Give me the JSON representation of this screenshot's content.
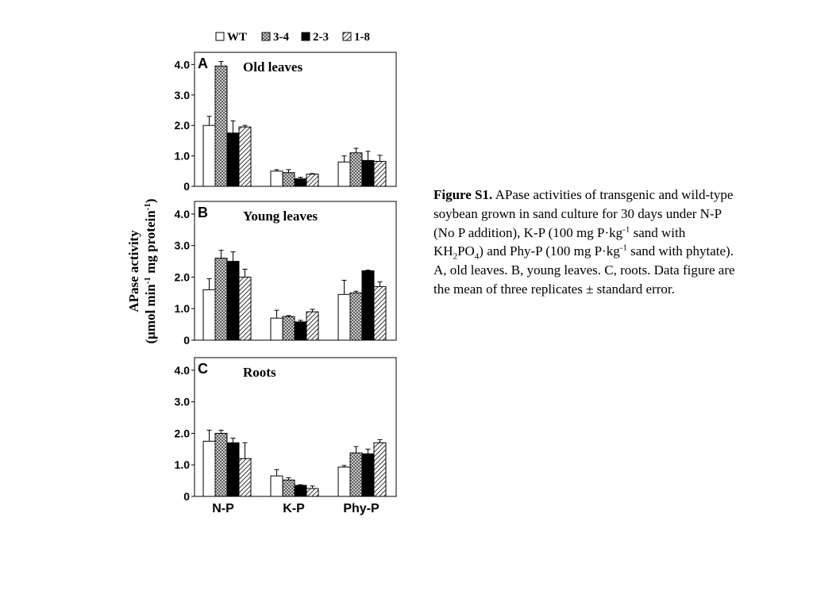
{
  "chart_data": {
    "type": "bar",
    "categories": [
      "N-P",
      "K-P",
      "Phy-P"
    ],
    "legend": [
      {
        "name": "WT",
        "style": "white"
      },
      {
        "name": "3-4",
        "style": "cross-hatch"
      },
      {
        "name": "2-3",
        "style": "black"
      },
      {
        "name": "1-8",
        "style": "diagonal"
      }
    ],
    "legend_position": "top",
    "ylabel_line1": "APase activity",
    "ylabel_line2_pre": "(μmol min",
    "ylabel_line2_sup1": "-1",
    "ylabel_line2_mid": " mg protein",
    "ylabel_line2_sup2": "-1",
    "ylabel_line2_post": ")",
    "ylim": [
      0,
      4.4
    ],
    "yticks": [
      {
        "value": 0,
        "label": "0"
      },
      {
        "value": 1,
        "label": "1.0"
      },
      {
        "value": 2,
        "label": "2.0"
      },
      {
        "value": 3,
        "label": "3.0"
      },
      {
        "value": 4,
        "label": "4.0"
      }
    ],
    "grid": false,
    "panels": [
      {
        "letter": "A",
        "title": "Old leaves",
        "series": [
          {
            "name": "WT",
            "values": [
              2.0,
              0.5,
              0.8
            ],
            "errors": [
              0.3,
              0.05,
              0.2
            ]
          },
          {
            "name": "3-4",
            "values": [
              3.95,
              0.45,
              1.1
            ],
            "errors": [
              0.15,
              0.1,
              0.15
            ]
          },
          {
            "name": "2-3",
            "values": [
              1.75,
              0.25,
              0.85
            ],
            "errors": [
              0.4,
              0.05,
              0.3
            ]
          },
          {
            "name": "1-8",
            "values": [
              1.95,
              0.4,
              0.82
            ],
            "errors": [
              0.05,
              0.02,
              0.2
            ]
          }
        ]
      },
      {
        "letter": "B",
        "title": "Young leaves",
        "series": [
          {
            "name": "WT",
            "values": [
              1.6,
              0.7,
              1.45
            ],
            "errors": [
              0.35,
              0.25,
              0.45
            ]
          },
          {
            "name": "3-4",
            "values": [
              2.6,
              0.75,
              1.5
            ],
            "errors": [
              0.25,
              0.03,
              0.05
            ]
          },
          {
            "name": "2-3",
            "values": [
              2.5,
              0.58,
              2.2
            ],
            "errors": [
              0.3,
              0.05,
              0.02
            ]
          },
          {
            "name": "1-8",
            "values": [
              2.0,
              0.9,
              1.7
            ],
            "errors": [
              0.25,
              0.08,
              0.15
            ]
          }
        ]
      },
      {
        "letter": "C",
        "title": "Roots",
        "series": [
          {
            "name": "WT",
            "values": [
              1.75,
              0.65,
              0.93
            ],
            "errors": [
              0.35,
              0.2,
              0.05
            ]
          },
          {
            "name": "3-4",
            "values": [
              2.0,
              0.52,
              1.38
            ],
            "errors": [
              0.1,
              0.07,
              0.2
            ]
          },
          {
            "name": "2-3",
            "values": [
              1.7,
              0.35,
              1.35
            ],
            "errors": [
              0.15,
              0.02,
              0.15
            ]
          },
          {
            "name": "1-8",
            "values": [
              1.2,
              0.25,
              1.7
            ],
            "errors": [
              0.5,
              0.08,
              0.1
            ]
          }
        ]
      }
    ]
  },
  "caption": {
    "heading": "Figure S1.",
    "text_1": " APase activities of transgenic and wild-type soybean grown in sand culture for 30 days under N-P (No P addition), K-P (100 mg P·kg",
    "sup_1": "-1",
    "text_2": " sand with KH",
    "sub_1": "2",
    "text_3": "PO",
    "sub_2": "4",
    "text_4": ") and Phy-P (100 mg P·kg",
    "sup_2": "-1",
    "text_5": " sand with phytate).",
    "line_2": "A, old leaves. B, young leaves. C, roots. Data figure are the mean of three replicates ± standard error."
  }
}
